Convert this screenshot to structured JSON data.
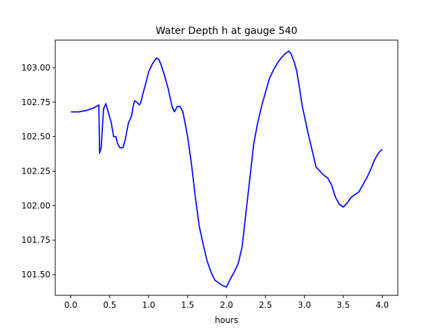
{
  "chart_data": {
    "type": "line",
    "title": "Water Depth h at gauge 540",
    "xlabel": "hours",
    "ylabel": "",
    "xlim": [
      -0.2,
      4.2
    ],
    "ylim": [
      101.35,
      103.2
    ],
    "grid": false,
    "line_color": "#0000ff",
    "x_ticks": [
      0.0,
      0.5,
      1.0,
      1.5,
      2.0,
      2.5,
      3.0,
      3.5,
      4.0
    ],
    "x_tick_labels": [
      "0.0",
      "0.5",
      "1.0",
      "1.5",
      "2.0",
      "2.5",
      "3.0",
      "3.5",
      "4.0"
    ],
    "y_ticks": [
      101.5,
      101.75,
      102.0,
      102.25,
      102.5,
      102.75,
      103.0
    ],
    "y_tick_labels": [
      "101.50",
      "101.75",
      "102.00",
      "102.25",
      "102.50",
      "102.75",
      "103.00"
    ],
    "series": [
      {
        "name": "",
        "x": [
          0.0,
          0.1,
          0.2,
          0.3,
          0.36,
          0.37,
          0.39,
          0.42,
          0.45,
          0.48,
          0.52,
          0.55,
          0.58,
          0.6,
          0.63,
          0.67,
          0.7,
          0.74,
          0.78,
          0.8,
          0.82,
          0.85,
          0.88,
          0.9,
          0.93,
          0.96,
          1.0,
          1.05,
          1.1,
          1.13,
          1.16,
          1.2,
          1.25,
          1.3,
          1.33,
          1.37,
          1.4,
          1.44,
          1.5,
          1.55,
          1.6,
          1.65,
          1.7,
          1.75,
          1.8,
          1.85,
          1.9,
          1.95,
          2.0,
          2.05,
          2.1,
          2.15,
          2.2,
          2.25,
          2.3,
          2.35,
          2.4,
          2.45,
          2.5,
          2.55,
          2.6,
          2.65,
          2.7,
          2.75,
          2.8,
          2.83,
          2.87,
          2.9,
          2.93,
          2.97,
          3.0,
          3.05,
          3.1,
          3.15,
          3.2,
          3.25,
          3.3,
          3.35,
          3.4,
          3.45,
          3.5,
          3.55,
          3.6,
          3.65,
          3.7,
          3.75,
          3.8,
          3.85,
          3.9,
          3.95,
          4.0
        ],
        "y": [
          102.68,
          102.68,
          102.69,
          102.71,
          102.73,
          102.38,
          102.42,
          102.7,
          102.74,
          102.68,
          102.6,
          102.5,
          102.5,
          102.45,
          102.42,
          102.42,
          102.48,
          102.6,
          102.65,
          102.72,
          102.76,
          102.75,
          102.73,
          102.75,
          102.82,
          102.88,
          102.97,
          103.03,
          103.07,
          103.06,
          103.02,
          102.95,
          102.85,
          102.72,
          102.68,
          102.72,
          102.72,
          102.68,
          102.5,
          102.3,
          102.06,
          101.85,
          101.72,
          101.6,
          101.52,
          101.46,
          101.44,
          101.42,
          101.41,
          101.47,
          101.52,
          101.58,
          101.7,
          101.95,
          102.2,
          102.45,
          102.6,
          102.72,
          102.82,
          102.92,
          102.98,
          103.03,
          103.07,
          103.1,
          103.12,
          103.1,
          103.04,
          102.98,
          102.88,
          102.73,
          102.65,
          102.52,
          102.4,
          102.28,
          102.25,
          102.22,
          102.2,
          102.15,
          102.06,
          102.01,
          101.99,
          102.02,
          102.06,
          102.08,
          102.1,
          102.15,
          102.2,
          102.26,
          102.33,
          102.38,
          102.41
        ]
      }
    ]
  }
}
